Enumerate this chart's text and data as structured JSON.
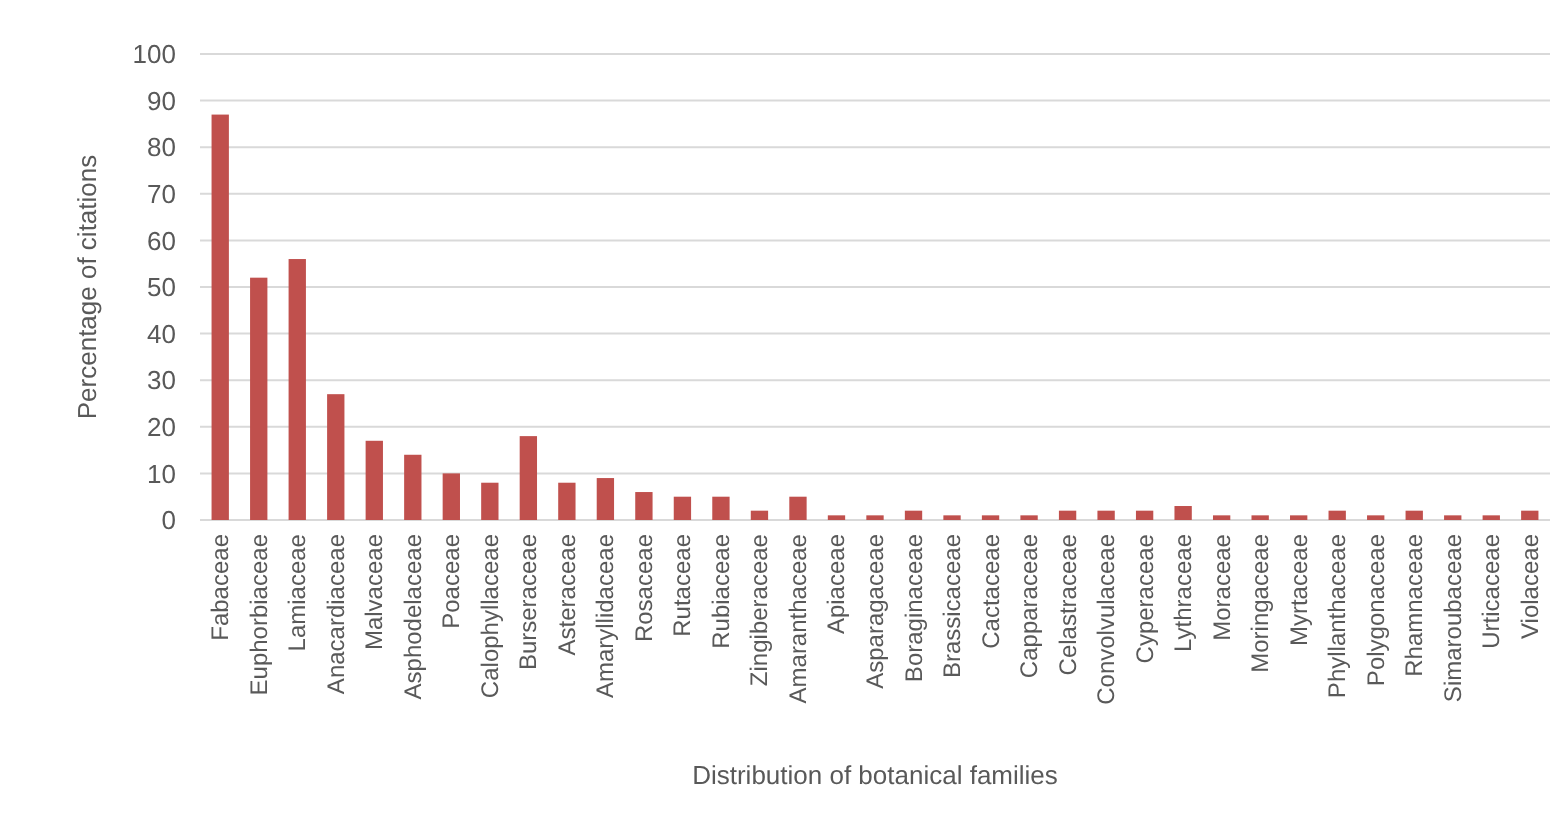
{
  "chart_data": {
    "type": "bar",
    "xlabel": "Distribution of botanical families",
    "ylabel": "Percentage of citations",
    "categories": [
      "Fabaceae",
      "Euphorbiaceae",
      "Lamiaceae",
      "Anacardiaceae",
      "Malvaceae",
      "Asphodelaceae",
      "Poaceae",
      "Calophyllaceae",
      "Burseraceae",
      "Asteraceae",
      "Amaryllidaceae",
      "Rosaceae",
      "Rutaceae",
      "Rubiaceae",
      "Zingiberaceae",
      "Amaranthaceae",
      "Apiaceae",
      "Asparagaceae",
      "Boraginaceae",
      "Brassicaceae",
      "Cactaceae",
      "Capparaceae",
      "Celastraceae",
      "Convolvulaceae",
      "Cyperaceae",
      "Lythraceae",
      "Moraceae",
      "Moringaceae",
      "Myrtaceae",
      "Phyllanthaceae",
      "Polygonaceae",
      "Rhamnaceae",
      "Simaroubaceae",
      "Urticaceae",
      "Violaceae"
    ],
    "values": [
      87,
      52,
      56,
      27,
      17,
      14,
      10,
      8,
      18,
      8,
      9,
      6,
      5,
      5,
      2,
      5,
      1,
      1,
      2,
      1,
      1,
      1,
      2,
      2,
      2,
      3,
      1,
      1,
      1,
      2,
      1,
      2,
      1,
      1,
      2
    ],
    "color": "#c0504d",
    "ylim": [
      0,
      100
    ],
    "yticks": [
      0,
      10,
      20,
      30,
      40,
      50,
      60,
      70,
      80,
      90,
      100
    ],
    "grid": "y"
  }
}
